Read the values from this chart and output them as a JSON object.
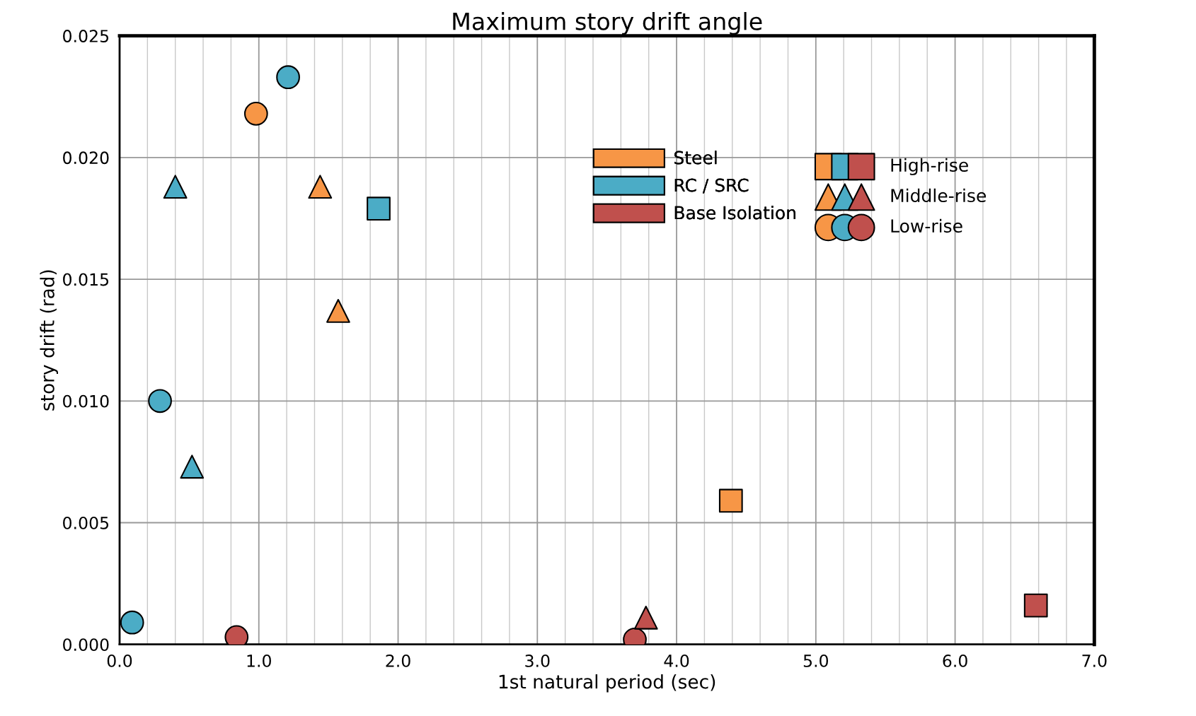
{
  "chart_data": {
    "type": "scatter",
    "title": "Maximum story drift angle",
    "xlabel": "1st natural period (sec)",
    "ylabel": "story drift (rad)",
    "xlim": [
      0,
      7
    ],
    "xticks": [
      {
        "value": 0,
        "label": "0.0"
      },
      {
        "value": 1,
        "label": "1.0"
      },
      {
        "value": 2,
        "label": "2.0"
      },
      {
        "value": 3,
        "label": "3.0"
      },
      {
        "value": 4,
        "label": "4.0"
      },
      {
        "value": 5,
        "label": "5.0"
      },
      {
        "value": 6,
        "label": "6.0"
      },
      {
        "value": 7,
        "label": "7.0"
      }
    ],
    "ylim": [
      0,
      0.025
    ],
    "yticks": [
      {
        "value": 0,
        "label": "0.000"
      },
      {
        "value": 0.005,
        "label": "0.005"
      },
      {
        "value": 0.01,
        "label": "0.010"
      },
      {
        "value": 0.015,
        "label": "0.015"
      },
      {
        "value": 0.02,
        "label": "0.020"
      },
      {
        "value": 0.025,
        "label": "0.025"
      }
    ],
    "grid": true,
    "legend": "top right",
    "annotations": [
      "High-rise",
      "Middle-rise",
      "Low-rise"
    ],
    "series": [
      {
        "name": "Steel",
        "color": "#f79646",
        "x": [
          0.98,
          1.44,
          1.57,
          4.39
        ],
        "values": [
          0.0218,
          0.0188,
          0.0137,
          0.0059
        ],
        "marker": [
          "circle",
          "triangle",
          "triangle",
          "square"
        ]
      },
      {
        "name": "RC / SRC",
        "color": "#4bacc6",
        "x": [
          1.21,
          0.4,
          1.86,
          0.29,
          0.52,
          0.09
        ],
        "values": [
          0.0233,
          0.0188,
          0.0179,
          0.01,
          0.0073,
          0.0009
        ],
        "marker": [
          "circle",
          "triangle",
          "square",
          "circle",
          "triangle",
          "circle"
        ]
      },
      {
        "name": "Base Isolation",
        "color": "#c0504d",
        "x": [
          0.84,
          3.7,
          3.78,
          6.58
        ],
        "values": [
          0.0003,
          0.0002,
          0.0011,
          0.0016
        ],
        "marker": [
          "circle",
          "circle",
          "triangle",
          "square"
        ]
      }
    ]
  }
}
